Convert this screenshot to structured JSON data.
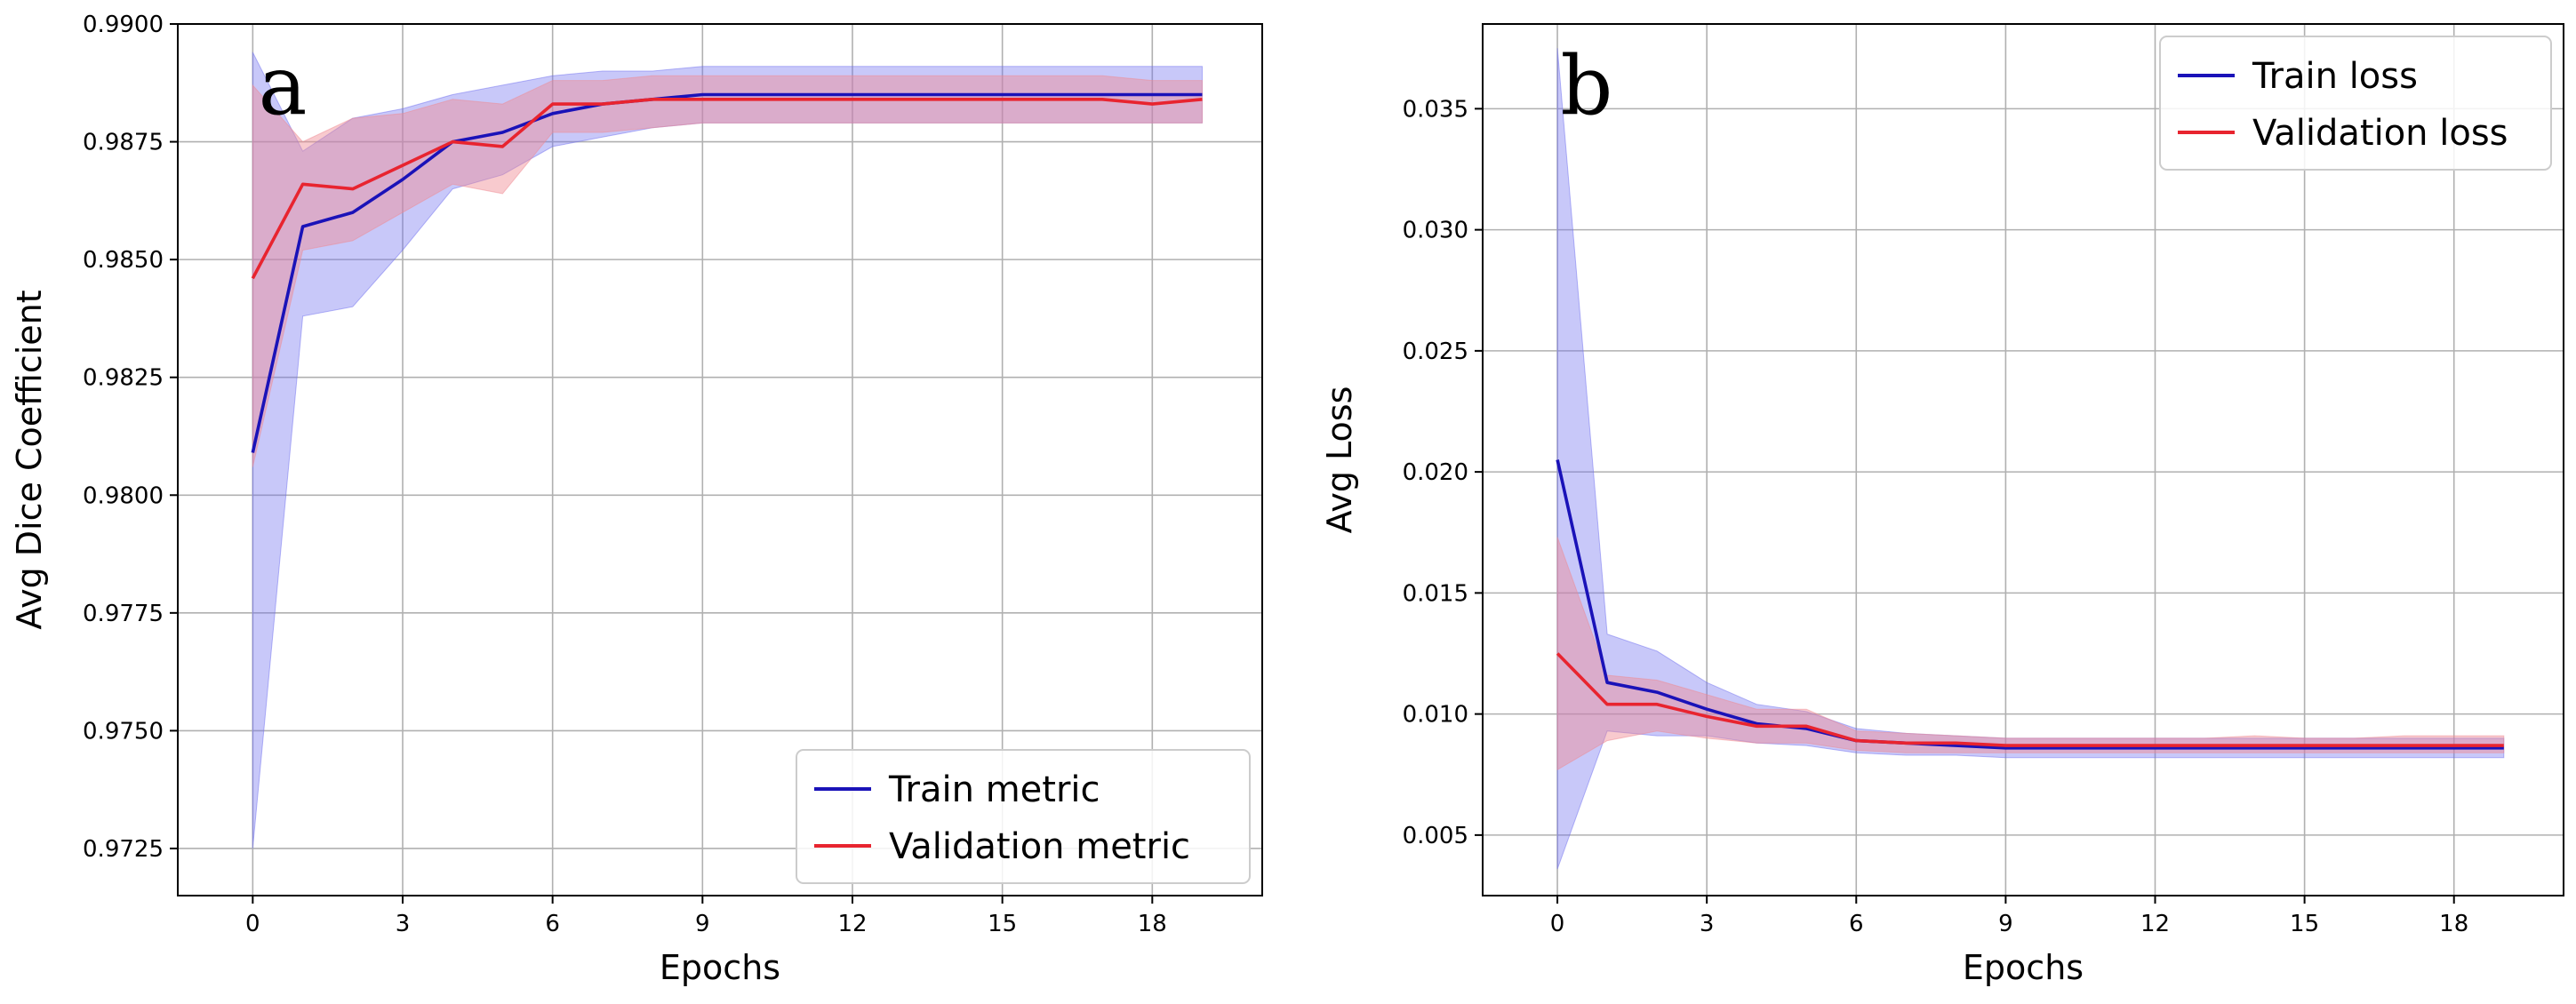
{
  "colors": {
    "train": "#1a12b8",
    "validation": "#e8242f",
    "train_band": "#6f6ff0",
    "validation_band": "#f08a92",
    "grid": "#b0b0b0"
  },
  "chart_data": [
    {
      "type": "line",
      "panel_label": "a",
      "xlabel": "Epochs",
      "ylabel": "Avg Dice Coefficient",
      "xlim": [
        -1.5,
        20.2
      ],
      "ylim": [
        0.9715,
        0.99
      ],
      "xticks": [
        0,
        3,
        6,
        9,
        12,
        15,
        18
      ],
      "xtick_labels": [
        "0",
        "3",
        "6",
        "9",
        "12",
        "15",
        "18"
      ],
      "yticks": [
        0.9725,
        0.975,
        0.9775,
        0.98,
        0.9825,
        0.985,
        0.9875,
        0.99
      ],
      "ytick_labels": [
        "0.9725",
        "0.9750",
        "0.9775",
        "0.9800",
        "0.9825",
        "0.9850",
        "0.9875",
        "0.9900"
      ],
      "legend_position": "lower-right",
      "x": [
        0,
        1,
        2,
        3,
        4,
        5,
        6,
        7,
        8,
        9,
        10,
        11,
        12,
        13,
        14,
        15,
        16,
        17,
        18,
        19
      ],
      "series": [
        {
          "name": "Train metric",
          "color_key": "train",
          "values": [
            0.9809,
            0.9857,
            0.986,
            0.9867,
            0.9875,
            0.9877,
            0.9881,
            0.9883,
            0.9884,
            0.9885,
            0.9885,
            0.9885,
            0.9885,
            0.9885,
            0.9885,
            0.9885,
            0.9885,
            0.9885,
            0.9885,
            0.9885
          ],
          "band_upper": [
            0.9894,
            0.9873,
            0.988,
            0.9882,
            0.9885,
            0.9887,
            0.9889,
            0.989,
            0.989,
            0.9891,
            0.9891,
            0.9891,
            0.9891,
            0.9891,
            0.9891,
            0.9891,
            0.9891,
            0.9891,
            0.9891,
            0.9891
          ],
          "band_lower": [
            0.9725,
            0.9838,
            0.984,
            0.9852,
            0.9865,
            0.9868,
            0.9874,
            0.9876,
            0.9878,
            0.9879,
            0.9879,
            0.9879,
            0.9879,
            0.9879,
            0.9879,
            0.9879,
            0.9879,
            0.9879,
            0.9879,
            0.9879
          ]
        },
        {
          "name": "Validation metric",
          "color_key": "validation",
          "values": [
            0.9846,
            0.9866,
            0.9865,
            0.987,
            0.9875,
            0.9874,
            0.9883,
            0.9883,
            0.9884,
            0.9884,
            0.9884,
            0.9884,
            0.9884,
            0.9884,
            0.9884,
            0.9884,
            0.9884,
            0.9884,
            0.9883,
            0.9884
          ],
          "band_upper": [
            0.9887,
            0.9875,
            0.988,
            0.9881,
            0.9884,
            0.9883,
            0.9888,
            0.9888,
            0.9889,
            0.9889,
            0.9889,
            0.9889,
            0.9889,
            0.9889,
            0.9889,
            0.9889,
            0.9889,
            0.9889,
            0.9888,
            0.9888
          ],
          "band_lower": [
            0.9806,
            0.9852,
            0.9854,
            0.986,
            0.9866,
            0.9864,
            0.9877,
            0.9877,
            0.9878,
            0.9879,
            0.9879,
            0.9879,
            0.9879,
            0.9879,
            0.9879,
            0.9879,
            0.9879,
            0.9879,
            0.9879,
            0.9879
          ]
        }
      ]
    },
    {
      "type": "line",
      "panel_label": "b",
      "xlabel": "Epochs",
      "ylabel": "Avg Loss",
      "xlim": [
        -1.5,
        20.2
      ],
      "ylim": [
        0.0025,
        0.0385
      ],
      "xticks": [
        0,
        3,
        6,
        9,
        12,
        15,
        18
      ],
      "xtick_labels": [
        "0",
        "3",
        "6",
        "9",
        "12",
        "15",
        "18"
      ],
      "yticks": [
        0.005,
        0.01,
        0.015,
        0.02,
        0.025,
        0.03,
        0.035
      ],
      "ytick_labels": [
        "0.005",
        "0.010",
        "0.015",
        "0.020",
        "0.025",
        "0.030",
        "0.035"
      ],
      "legend_position": "top-right",
      "x": [
        0,
        1,
        2,
        3,
        4,
        5,
        6,
        7,
        8,
        9,
        10,
        11,
        12,
        13,
        14,
        15,
        16,
        17,
        18,
        19
      ],
      "series": [
        {
          "name": "Train loss",
          "color_key": "train",
          "values": [
            0.0205,
            0.0113,
            0.0109,
            0.0102,
            0.0096,
            0.0094,
            0.0089,
            0.0088,
            0.0087,
            0.0086,
            0.0086,
            0.0086,
            0.0086,
            0.0086,
            0.0086,
            0.0086,
            0.0086,
            0.0086,
            0.0086,
            0.0086
          ],
          "band_upper": [
            0.0375,
            0.0133,
            0.0126,
            0.0113,
            0.0104,
            0.0101,
            0.0094,
            0.0092,
            0.0091,
            0.009,
            0.009,
            0.009,
            0.009,
            0.009,
            0.009,
            0.009,
            0.009,
            0.009,
            0.009,
            0.009
          ],
          "band_lower": [
            0.0036,
            0.0093,
            0.0091,
            0.0091,
            0.0088,
            0.0087,
            0.0084,
            0.0083,
            0.0083,
            0.0082,
            0.0082,
            0.0082,
            0.0082,
            0.0082,
            0.0082,
            0.0082,
            0.0082,
            0.0082,
            0.0082,
            0.0082
          ]
        },
        {
          "name": "Validation loss",
          "color_key": "validation",
          "values": [
            0.0125,
            0.0104,
            0.0104,
            0.0099,
            0.0095,
            0.0095,
            0.0089,
            0.0088,
            0.0088,
            0.0087,
            0.0087,
            0.0087,
            0.0087,
            0.0087,
            0.0087,
            0.0087,
            0.0087,
            0.0087,
            0.0087,
            0.0087
          ],
          "band_upper": [
            0.0173,
            0.0116,
            0.0114,
            0.0108,
            0.0102,
            0.0102,
            0.0093,
            0.0092,
            0.0091,
            0.009,
            0.009,
            0.009,
            0.009,
            0.009,
            0.0091,
            0.009,
            0.009,
            0.0091,
            0.0091,
            0.0091
          ],
          "band_lower": [
            0.0077,
            0.0089,
            0.0093,
            0.009,
            0.0088,
            0.0088,
            0.0085,
            0.0084,
            0.0084,
            0.0084,
            0.0084,
            0.0084,
            0.0084,
            0.0084,
            0.0084,
            0.0084,
            0.0084,
            0.0084,
            0.0084,
            0.0084
          ]
        }
      ]
    }
  ]
}
